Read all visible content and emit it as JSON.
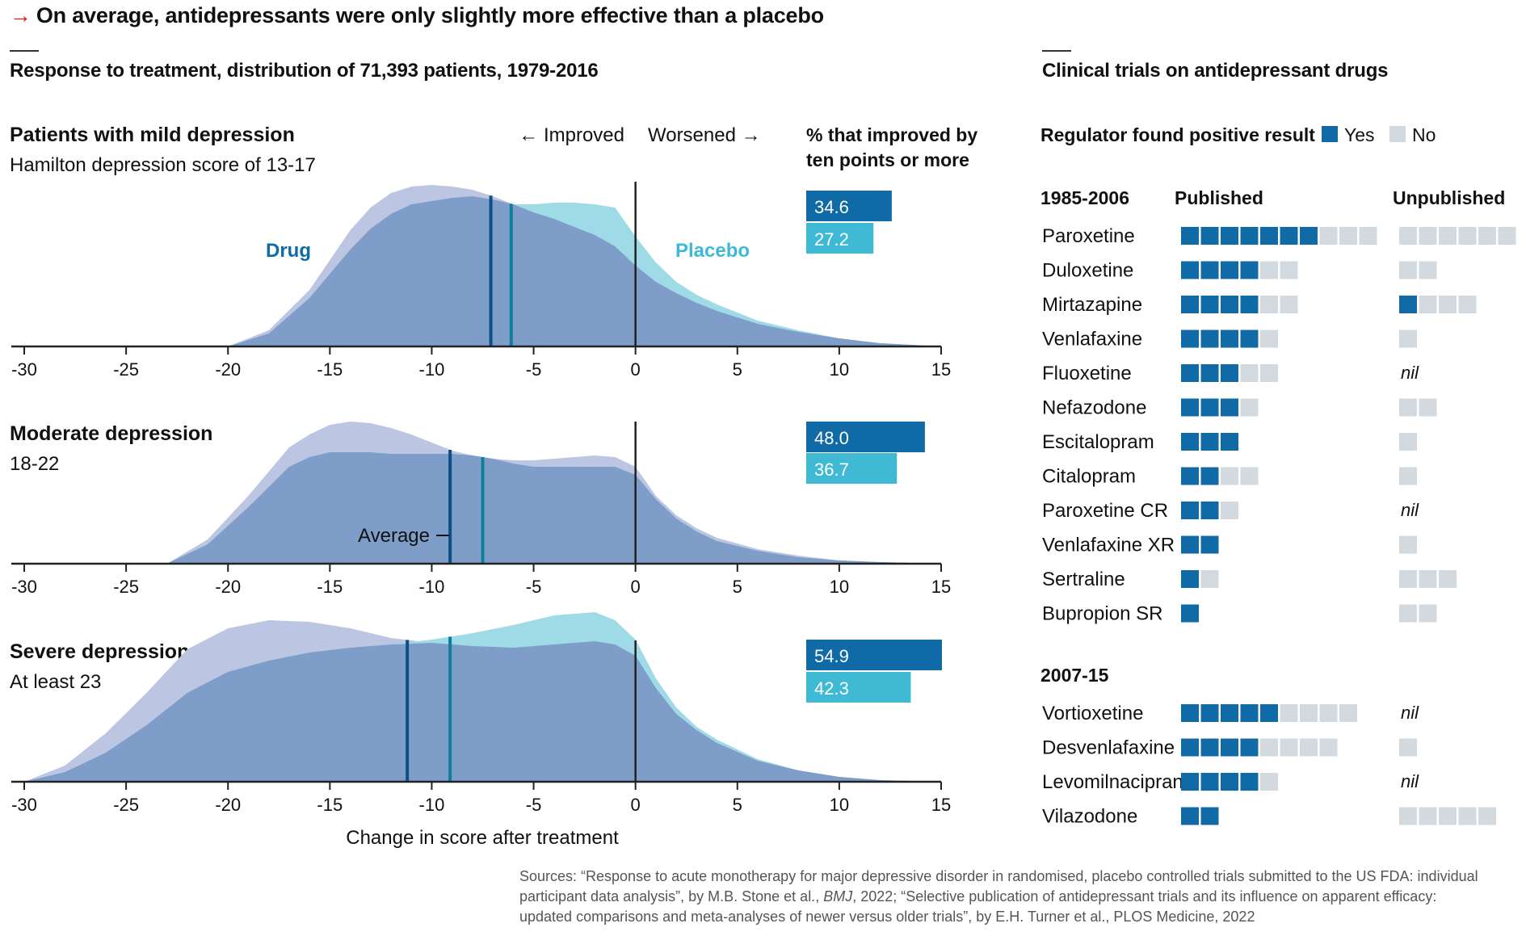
{
  "headline": {
    "arrow": "→",
    "text": "On average, antidepressants were only slightly more effective than a placebo"
  },
  "left_subtitle": "Response to treatment, distribution of 71,393 patients, 1979-2016",
  "right_subtitle": "Clinical trials on antidepressant drugs",
  "sources": {
    "prefix": "Sources: “Response to acute monotherapy for major depressive disorder in randomised, placebo controlled trials submitted to the US FDA: individual participant data analysis”, by M.B. Stone et al., ",
    "journal": "BMJ",
    "suffix": ", 2022; “Selective publication of antidepressant trials and its influence on apparent efficacy: updated comparisons and meta-analyses of newer versus older trials”, by E.H. Turner et al., PLOS Medicine, 2022"
  },
  "colors": {
    "drug": "#0f6aa6",
    "placebo": "#3fb9d4",
    "drug_fill": "#7e9ec9",
    "drug_fill_light": "#bcc6e2",
    "placebo_fill": "#9fdbe7",
    "yes": "#0f6aa6",
    "no": "#d2d9df",
    "accent": "#e3120b"
  },
  "chart_data": [
    {
      "type": "area",
      "improved_label": "← Improved",
      "worsened_label": "Worsened →",
      "pct_header": [
        "% that improved by",
        "ten points or more"
      ],
      "xlabel": "Change in score after treatment",
      "xlim": [
        -30,
        15
      ],
      "xticks": [
        -30,
        -25,
        -20,
        -15,
        -10,
        -5,
        0,
        5,
        10,
        15
      ],
      "xtick_labels": [
        "-30",
        "-25",
        "-20",
        "-15",
        "-10",
        "-5",
        "0",
        "5",
        "10",
        "15"
      ],
      "series_labels": {
        "drug": "Drug",
        "placebo": "Placebo"
      },
      "average_label": "Average",
      "panels": [
        {
          "title": "Patients with mild depression",
          "subtitle": "Hamilton depression score of 13-17",
          "drug": {
            "x": [
              -20,
              -18,
              -16,
              -14,
              -13,
              -12,
              -11,
              -10,
              -9,
              -8,
              -7,
              -6,
              -5,
              -4,
              -3,
              -2,
              -1,
              0,
              1,
              2,
              3,
              4,
              5,
              6,
              8,
              10,
              12,
              15
            ],
            "y": [
              0,
              0.1,
              0.35,
              0.72,
              0.86,
              0.95,
              0.99,
              1.0,
              0.99,
              0.97,
              0.93,
              0.88,
              0.83,
              0.79,
              0.74,
              0.69,
              0.62,
              0.5,
              0.4,
              0.33,
              0.27,
              0.22,
              0.18,
              0.14,
              0.09,
              0.05,
              0.02,
              0
            ]
          },
          "placebo": {
            "x": [
              -20,
              -18,
              -16,
              -14,
              -13,
              -12,
              -11,
              -10,
              -9,
              -8,
              -7,
              -6,
              -5,
              -4,
              -3,
              -2,
              -1,
              0,
              1,
              2,
              3,
              4,
              5,
              6,
              8,
              10,
              12,
              15
            ],
            "y": [
              0,
              0.08,
              0.3,
              0.6,
              0.73,
              0.82,
              0.88,
              0.9,
              0.92,
              0.93,
              0.91,
              0.88,
              0.88,
              0.89,
              0.89,
              0.88,
              0.86,
              0.68,
              0.52,
              0.4,
              0.32,
              0.26,
              0.21,
              0.16,
              0.1,
              0.05,
              0.02,
              0
            ]
          },
          "drug_avg": -7.1,
          "placebo_avg": -6.1,
          "drug_label": "Drug",
          "placebo_label": "Placebo",
          "drug_pct": "34.6",
          "placebo_pct": "27.2",
          "drug_pct_value": 34.6,
          "placebo_pct_value": 27.2
        },
        {
          "title": "Moderate depression",
          "subtitle": "18-22",
          "drug": {
            "x": [
              -23,
              -21,
              -19,
              -17,
              -16,
              -15,
              -14,
              -13,
              -12,
              -11,
              -10,
              -9,
              -8,
              -7,
              -6,
              -5,
              -4,
              -3,
              -2,
              -1,
              0,
              1,
              2,
              3,
              4,
              6,
              8,
              10,
              12,
              15
            ],
            "y": [
              0,
              0.15,
              0.42,
              0.72,
              0.8,
              0.86,
              0.88,
              0.87,
              0.84,
              0.8,
              0.75,
              0.7,
              0.67,
              0.65,
              0.64,
              0.64,
              0.65,
              0.66,
              0.67,
              0.66,
              0.6,
              0.42,
              0.3,
              0.22,
              0.16,
              0.09,
              0.05,
              0.02,
              0.01,
              0
            ]
          },
          "placebo": {
            "x": [
              -23,
              -21,
              -19,
              -17,
              -16,
              -15,
              -14,
              -13,
              -12,
              -11,
              -10,
              -9,
              -8,
              -7,
              -6,
              -5,
              -4,
              -3,
              -2,
              -1,
              0,
              1,
              2,
              3,
              4,
              6,
              8,
              10,
              12,
              15
            ],
            "y": [
              0,
              0.12,
              0.35,
              0.6,
              0.66,
              0.69,
              0.69,
              0.69,
              0.68,
              0.68,
              0.68,
              0.68,
              0.67,
              0.65,
              0.62,
              0.6,
              0.6,
              0.6,
              0.6,
              0.6,
              0.55,
              0.4,
              0.28,
              0.2,
              0.14,
              0.08,
              0.04,
              0.02,
              0.01,
              0
            ]
          },
          "drug_avg": -9.1,
          "placebo_avg": -7.5,
          "drug_pct": "48.0",
          "placebo_pct": "36.7",
          "drug_pct_value": 48.0,
          "placebo_pct_value": 36.7
        },
        {
          "title": "Severe depression",
          "subtitle": "At least 23",
          "drug": {
            "x": [
              -30,
              -28,
              -26,
              -24,
              -22,
              -20,
              -18,
              -16,
              -14,
              -12,
              -10,
              -8,
              -6,
              -4,
              -2,
              -1,
              0,
              1,
              2,
              3,
              4,
              6,
              8,
              10,
              12,
              15
            ],
            "y": [
              0,
              0.1,
              0.3,
              0.55,
              0.82,
              0.95,
              1.0,
              0.99,
              0.95,
              0.89,
              0.86,
              0.84,
              0.83,
              0.85,
              0.87,
              0.85,
              0.78,
              0.58,
              0.42,
              0.32,
              0.24,
              0.13,
              0.07,
              0.03,
              0.01,
              0
            ]
          },
          "placebo": {
            "x": [
              -30,
              -28,
              -26,
              -24,
              -22,
              -20,
              -18,
              -16,
              -14,
              -12,
              -10,
              -8,
              -6,
              -4,
              -2,
              -1,
              0,
              1,
              2,
              3,
              4,
              6,
              8,
              10,
              12,
              15
            ],
            "y": [
              0,
              0.06,
              0.18,
              0.35,
              0.55,
              0.68,
              0.75,
              0.8,
              0.83,
              0.85,
              0.88,
              0.92,
              0.97,
              1.03,
              1.05,
              1.0,
              0.88,
              0.64,
              0.46,
              0.34,
              0.26,
              0.14,
              0.07,
              0.03,
              0.01,
              0
            ]
          },
          "drug_avg": -11.2,
          "placebo_avg": -9.1,
          "drug_pct": "54.9",
          "placebo_pct": "42.3",
          "drug_pct_value": 54.9,
          "placebo_pct_value": 42.3
        }
      ]
    },
    {
      "type": "table",
      "legend_title": "Regulator found positive result",
      "legend": [
        {
          "label": "Yes",
          "key": "yes"
        },
        {
          "label": "No",
          "key": "no"
        }
      ],
      "column_labels": [
        "Published",
        "Unpublished"
      ],
      "nil_label": "nil",
      "groups": [
        {
          "period": "1985-2006",
          "drugs": [
            {
              "name": "Paroxetine",
              "published": {
                "yes": 7,
                "no": 3
              },
              "unpublished": {
                "yes": 0,
                "no": 6
              }
            },
            {
              "name": "Duloxetine",
              "published": {
                "yes": 4,
                "no": 2
              },
              "unpublished": {
                "yes": 0,
                "no": 2
              }
            },
            {
              "name": "Mirtazapine",
              "published": {
                "yes": 4,
                "no": 2
              },
              "unpublished": {
                "yes": 1,
                "no": 3
              }
            },
            {
              "name": "Venlafaxine",
              "published": {
                "yes": 4,
                "no": 1
              },
              "unpublished": {
                "yes": 0,
                "no": 1
              }
            },
            {
              "name": "Fluoxetine",
              "published": {
                "yes": 3,
                "no": 2
              },
              "unpublished": {
                "yes": 0,
                "no": 0
              }
            },
            {
              "name": "Nefazodone",
              "published": {
                "yes": 3,
                "no": 1
              },
              "unpublished": {
                "yes": 0,
                "no": 2
              }
            },
            {
              "name": "Escitalopram",
              "published": {
                "yes": 3,
                "no": 0
              },
              "unpublished": {
                "yes": 0,
                "no": 1
              }
            },
            {
              "name": "Citalopram",
              "published": {
                "yes": 2,
                "no": 2
              },
              "unpublished": {
                "yes": 0,
                "no": 1
              }
            },
            {
              "name": "Paroxetine CR",
              "published": {
                "yes": 2,
                "no": 1
              },
              "unpublished": {
                "yes": 0,
                "no": 0
              }
            },
            {
              "name": "Venlafaxine XR",
              "published": {
                "yes": 2,
                "no": 0
              },
              "unpublished": {
                "yes": 0,
                "no": 1
              }
            },
            {
              "name": "Sertraline",
              "published": {
                "yes": 1,
                "no": 1
              },
              "unpublished": {
                "yes": 0,
                "no": 3
              }
            },
            {
              "name": "Bupropion SR",
              "published": {
                "yes": 1,
                "no": 0
              },
              "unpublished": {
                "yes": 0,
                "no": 2
              }
            }
          ]
        },
        {
          "period": "2007-15",
          "drugs": [
            {
              "name": "Vortioxetine",
              "published": {
                "yes": 5,
                "no": 4
              },
              "unpublished": {
                "yes": 0,
                "no": 0
              }
            },
            {
              "name": "Desvenlafaxine",
              "published": {
                "yes": 4,
                "no": 4
              },
              "unpublished": {
                "yes": 0,
                "no": 1
              }
            },
            {
              "name": "Levomilnacipran",
              "published": {
                "yes": 4,
                "no": 1
              },
              "unpublished": {
                "yes": 0,
                "no": 0
              }
            },
            {
              "name": "Vilazodone",
              "published": {
                "yes": 2,
                "no": 0
              },
              "unpublished": {
                "yes": 0,
                "no": 5
              }
            }
          ]
        }
      ]
    }
  ]
}
